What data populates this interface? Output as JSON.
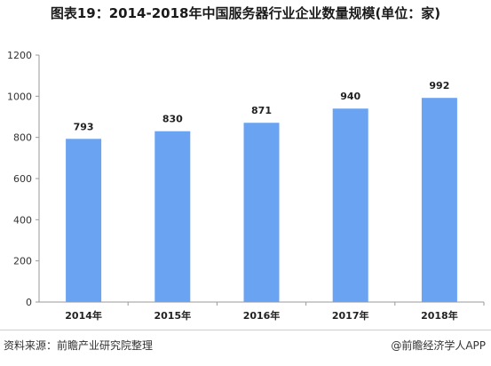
{
  "title": "图表19：2014-2018年中国服务器行业企业数量规模(单位：家)",
  "source": "资料来源：前瞻产业研究院整理",
  "brand": "@前瞻经济学人APP",
  "chart_data": {
    "type": "bar",
    "title": "图表19：2014-2018年中国服务器行业企业数量规模(单位：家)",
    "categories": [
      "2014年",
      "2015年",
      "2016年",
      "2017年",
      "2018年"
    ],
    "values": [
      793,
      830,
      871,
      940,
      992
    ],
    "data_labels": [
      "793",
      "830",
      "871",
      "940",
      "992"
    ],
    "ylim": [
      0,
      1200
    ],
    "yticks": [
      0,
      200,
      400,
      600,
      800,
      1000,
      1200
    ],
    "ytick_labels": [
      "0",
      "200",
      "400",
      "600",
      "800",
      "1000",
      "1200"
    ],
    "grid": false,
    "bar_color": "#6aa3f2",
    "legend": "none"
  }
}
